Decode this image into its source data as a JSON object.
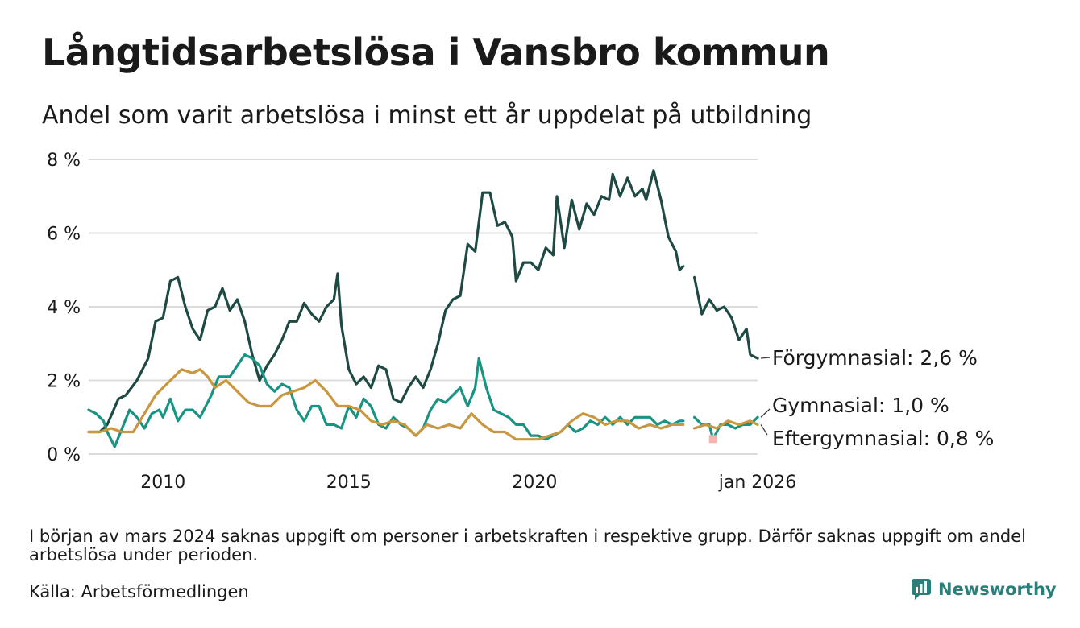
{
  "title": "Långtidsarbetslösa i Vansbro kommun",
  "subtitle": "Andel som varit arbetslösa i minst ett år uppdelat på utbildning",
  "note": "I början av mars 2024 saknas uppgift om personer i arbetskraften i respektive grupp. Därför saknas uppgift om andel arbetslösa under perioden.",
  "source": "Källa: Arbetsförmedlingen",
  "brand": {
    "name": "Newsworthy",
    "icon": "bar-chart-bubble-icon",
    "color": "#2a7f7a"
  },
  "chart_data": {
    "type": "line",
    "title": "Långtidsarbetslösa i Vansbro kommun",
    "xlabel": "",
    "ylabel": "",
    "xlim": [
      2008.0,
      2026.0
    ],
    "ylim": [
      0,
      8
    ],
    "y_ticks": [
      0,
      2,
      4,
      6,
      8
    ],
    "y_tick_labels": [
      "0 %",
      "2 %",
      "4 %",
      "6 %",
      "8 %"
    ],
    "x_ticks": [
      2010,
      2015,
      2020,
      2026.0
    ],
    "x_tick_labels": [
      "2010",
      "2015",
      "2020",
      "jan 2026"
    ],
    "grid": true,
    "gap": [
      2024.0,
      2024.3
    ],
    "series": [
      {
        "name": "Förgymnasial",
        "label": "Förgymnasial: 2,6 %",
        "color": "#1f4a44",
        "points": [
          [
            2008.0,
            0.6
          ],
          [
            2008.3,
            0.6
          ],
          [
            2008.5,
            0.8
          ],
          [
            2008.8,
            1.5
          ],
          [
            2009.0,
            1.6
          ],
          [
            2009.3,
            2.0
          ],
          [
            2009.6,
            2.6
          ],
          [
            2009.8,
            3.6
          ],
          [
            2010.0,
            3.7
          ],
          [
            2010.2,
            4.7
          ],
          [
            2010.4,
            4.8
          ],
          [
            2010.6,
            4.0
          ],
          [
            2010.8,
            3.4
          ],
          [
            2011.0,
            3.1
          ],
          [
            2011.2,
            3.9
          ],
          [
            2011.4,
            4.0
          ],
          [
            2011.6,
            4.5
          ],
          [
            2011.8,
            3.9
          ],
          [
            2012.0,
            4.2
          ],
          [
            2012.2,
            3.6
          ],
          [
            2012.4,
            2.7
          ],
          [
            2012.6,
            2.0
          ],
          [
            2012.8,
            2.4
          ],
          [
            2013.0,
            2.7
          ],
          [
            2013.2,
            3.1
          ],
          [
            2013.4,
            3.6
          ],
          [
            2013.6,
            3.6
          ],
          [
            2013.8,
            4.1
          ],
          [
            2014.0,
            3.8
          ],
          [
            2014.2,
            3.6
          ],
          [
            2014.4,
            4.0
          ],
          [
            2014.6,
            4.2
          ],
          [
            2014.7,
            4.9
          ],
          [
            2014.8,
            3.5
          ],
          [
            2015.0,
            2.3
          ],
          [
            2015.2,
            1.9
          ],
          [
            2015.4,
            2.1
          ],
          [
            2015.6,
            1.8
          ],
          [
            2015.8,
            2.4
          ],
          [
            2016.0,
            2.3
          ],
          [
            2016.2,
            1.5
          ],
          [
            2016.4,
            1.4
          ],
          [
            2016.6,
            1.8
          ],
          [
            2016.8,
            2.1
          ],
          [
            2017.0,
            1.8
          ],
          [
            2017.2,
            2.3
          ],
          [
            2017.4,
            3.0
          ],
          [
            2017.6,
            3.9
          ],
          [
            2017.8,
            4.2
          ],
          [
            2018.0,
            4.3
          ],
          [
            2018.2,
            5.7
          ],
          [
            2018.4,
            5.5
          ],
          [
            2018.6,
            7.1
          ],
          [
            2018.8,
            7.1
          ],
          [
            2019.0,
            6.2
          ],
          [
            2019.2,
            6.3
          ],
          [
            2019.4,
            5.9
          ],
          [
            2019.5,
            4.7
          ],
          [
            2019.7,
            5.2
          ],
          [
            2019.9,
            5.2
          ],
          [
            2020.1,
            5.0
          ],
          [
            2020.3,
            5.6
          ],
          [
            2020.5,
            5.4
          ],
          [
            2020.6,
            7.0
          ],
          [
            2020.8,
            5.6
          ],
          [
            2021.0,
            6.9
          ],
          [
            2021.2,
            6.1
          ],
          [
            2021.4,
            6.8
          ],
          [
            2021.6,
            6.5
          ],
          [
            2021.8,
            7.0
          ],
          [
            2022.0,
            6.9
          ],
          [
            2022.1,
            7.6
          ],
          [
            2022.3,
            7.0
          ],
          [
            2022.5,
            7.5
          ],
          [
            2022.7,
            7.0
          ],
          [
            2022.9,
            7.2
          ],
          [
            2023.0,
            6.9
          ],
          [
            2023.2,
            7.7
          ],
          [
            2023.4,
            6.9
          ],
          [
            2023.6,
            5.9
          ],
          [
            2023.8,
            5.5
          ],
          [
            2023.9,
            5.0
          ],
          [
            2024.0,
            5.1
          ],
          null,
          [
            2024.3,
            4.8
          ],
          [
            2024.5,
            3.8
          ],
          [
            2024.7,
            4.2
          ],
          [
            2024.9,
            3.9
          ],
          [
            2025.1,
            4.0
          ],
          [
            2025.3,
            3.7
          ],
          [
            2025.5,
            3.1
          ],
          [
            2025.7,
            3.4
          ],
          [
            2025.8,
            2.7
          ],
          [
            2026.0,
            2.6
          ]
        ]
      },
      {
        "name": "Gymnasial",
        "label": "Gymnasial: 1,0 %",
        "color": "#1a9482",
        "points": [
          [
            2008.0,
            1.2
          ],
          [
            2008.2,
            1.1
          ],
          [
            2008.4,
            0.9
          ],
          [
            2008.5,
            0.6
          ],
          [
            2008.7,
            0.2
          ],
          [
            2008.9,
            0.7
          ],
          [
            2009.1,
            1.2
          ],
          [
            2009.3,
            1.0
          ],
          [
            2009.5,
            0.7
          ],
          [
            2009.7,
            1.1
          ],
          [
            2009.9,
            1.2
          ],
          [
            2010.0,
            1.0
          ],
          [
            2010.2,
            1.5
          ],
          [
            2010.4,
            0.9
          ],
          [
            2010.6,
            1.2
          ],
          [
            2010.8,
            1.2
          ],
          [
            2011.0,
            1.0
          ],
          [
            2011.3,
            1.6
          ],
          [
            2011.5,
            2.1
          ],
          [
            2011.8,
            2.1
          ],
          [
            2012.0,
            2.4
          ],
          [
            2012.2,
            2.7
          ],
          [
            2012.4,
            2.6
          ],
          [
            2012.6,
            2.4
          ],
          [
            2012.8,
            1.9
          ],
          [
            2013.0,
            1.7
          ],
          [
            2013.2,
            1.9
          ],
          [
            2013.4,
            1.8
          ],
          [
            2013.6,
            1.2
          ],
          [
            2013.8,
            0.9
          ],
          [
            2014.0,
            1.3
          ],
          [
            2014.2,
            1.3
          ],
          [
            2014.4,
            0.8
          ],
          [
            2014.6,
            0.8
          ],
          [
            2014.8,
            0.7
          ],
          [
            2015.0,
            1.3
          ],
          [
            2015.2,
            1.0
          ],
          [
            2015.4,
            1.5
          ],
          [
            2015.6,
            1.3
          ],
          [
            2015.8,
            0.8
          ],
          [
            2016.0,
            0.7
          ],
          [
            2016.2,
            1.0
          ],
          [
            2016.4,
            0.8
          ],
          [
            2016.6,
            0.7
          ],
          [
            2016.8,
            0.5
          ],
          [
            2017.0,
            0.7
          ],
          [
            2017.2,
            1.2
          ],
          [
            2017.4,
            1.5
          ],
          [
            2017.6,
            1.4
          ],
          [
            2017.8,
            1.6
          ],
          [
            2018.0,
            1.8
          ],
          [
            2018.2,
            1.3
          ],
          [
            2018.4,
            1.8
          ],
          [
            2018.5,
            2.6
          ],
          [
            2018.7,
            1.8
          ],
          [
            2018.9,
            1.2
          ],
          [
            2019.1,
            1.1
          ],
          [
            2019.3,
            1.0
          ],
          [
            2019.5,
            0.8
          ],
          [
            2019.7,
            0.8
          ],
          [
            2019.9,
            0.5
          ],
          [
            2020.1,
            0.5
          ],
          [
            2020.3,
            0.4
          ],
          [
            2020.5,
            0.5
          ],
          [
            2020.7,
            0.6
          ],
          [
            2020.9,
            0.8
          ],
          [
            2021.1,
            0.6
          ],
          [
            2021.3,
            0.7
          ],
          [
            2021.5,
            0.9
          ],
          [
            2021.7,
            0.8
          ],
          [
            2021.9,
            1.0
          ],
          [
            2022.1,
            0.8
          ],
          [
            2022.3,
            1.0
          ],
          [
            2022.5,
            0.8
          ],
          [
            2022.7,
            1.0
          ],
          [
            2022.9,
            1.0
          ],
          [
            2023.1,
            1.0
          ],
          [
            2023.3,
            0.8
          ],
          [
            2023.5,
            0.9
          ],
          [
            2023.7,
            0.8
          ],
          [
            2023.9,
            0.9
          ],
          [
            2024.0,
            0.9
          ],
          null,
          [
            2024.3,
            1.0
          ],
          [
            2024.5,
            0.8
          ],
          [
            2024.7,
            0.8
          ],
          [
            2024.8,
            0.4
          ],
          [
            2025.0,
            0.8
          ],
          [
            2025.2,
            0.8
          ],
          [
            2025.4,
            0.7
          ],
          [
            2025.6,
            0.8
          ],
          [
            2025.8,
            0.8
          ],
          [
            2026.0,
            1.0
          ]
        ]
      },
      {
        "name": "Eftergymnasial",
        "label": "Eftergymnasial: 0,8 %",
        "color": "#c9973e",
        "points": [
          [
            2008.0,
            0.6
          ],
          [
            2008.3,
            0.6
          ],
          [
            2008.6,
            0.7
          ],
          [
            2008.9,
            0.6
          ],
          [
            2009.2,
            0.6
          ],
          [
            2009.5,
            1.1
          ],
          [
            2009.8,
            1.6
          ],
          [
            2010.0,
            1.8
          ],
          [
            2010.3,
            2.1
          ],
          [
            2010.5,
            2.3
          ],
          [
            2010.8,
            2.2
          ],
          [
            2011.0,
            2.3
          ],
          [
            2011.2,
            2.1
          ],
          [
            2011.4,
            1.8
          ],
          [
            2011.7,
            2.0
          ],
          [
            2012.0,
            1.7
          ],
          [
            2012.3,
            1.4
          ],
          [
            2012.6,
            1.3
          ],
          [
            2012.9,
            1.3
          ],
          [
            2013.2,
            1.6
          ],
          [
            2013.5,
            1.7
          ],
          [
            2013.8,
            1.8
          ],
          [
            2014.1,
            2.0
          ],
          [
            2014.4,
            1.7
          ],
          [
            2014.7,
            1.3
          ],
          [
            2015.0,
            1.3
          ],
          [
            2015.3,
            1.2
          ],
          [
            2015.6,
            0.9
          ],
          [
            2015.9,
            0.8
          ],
          [
            2016.2,
            0.9
          ],
          [
            2016.5,
            0.8
          ],
          [
            2016.8,
            0.5
          ],
          [
            2017.1,
            0.8
          ],
          [
            2017.4,
            0.7
          ],
          [
            2017.7,
            0.8
          ],
          [
            2018.0,
            0.7
          ],
          [
            2018.3,
            1.1
          ],
          [
            2018.6,
            0.8
          ],
          [
            2018.9,
            0.6
          ],
          [
            2019.2,
            0.6
          ],
          [
            2019.5,
            0.4
          ],
          [
            2019.8,
            0.4
          ],
          [
            2020.1,
            0.4
          ],
          [
            2020.4,
            0.5
          ],
          [
            2020.7,
            0.6
          ],
          [
            2021.0,
            0.9
          ],
          [
            2021.3,
            1.1
          ],
          [
            2021.6,
            1.0
          ],
          [
            2021.9,
            0.8
          ],
          [
            2022.2,
            0.9
          ],
          [
            2022.5,
            0.9
          ],
          [
            2022.8,
            0.7
          ],
          [
            2023.1,
            0.8
          ],
          [
            2023.4,
            0.7
          ],
          [
            2023.7,
            0.8
          ],
          [
            2024.0,
            0.8
          ],
          null,
          [
            2024.3,
            0.7
          ],
          [
            2024.6,
            0.8
          ],
          [
            2024.9,
            0.7
          ],
          [
            2025.2,
            0.9
          ],
          [
            2025.5,
            0.8
          ],
          [
            2025.8,
            0.9
          ],
          [
            2026.0,
            0.8
          ]
        ]
      }
    ],
    "annotation_marker": {
      "x": 2024.8,
      "y": 0.3,
      "color": "#f2b5b0"
    }
  }
}
